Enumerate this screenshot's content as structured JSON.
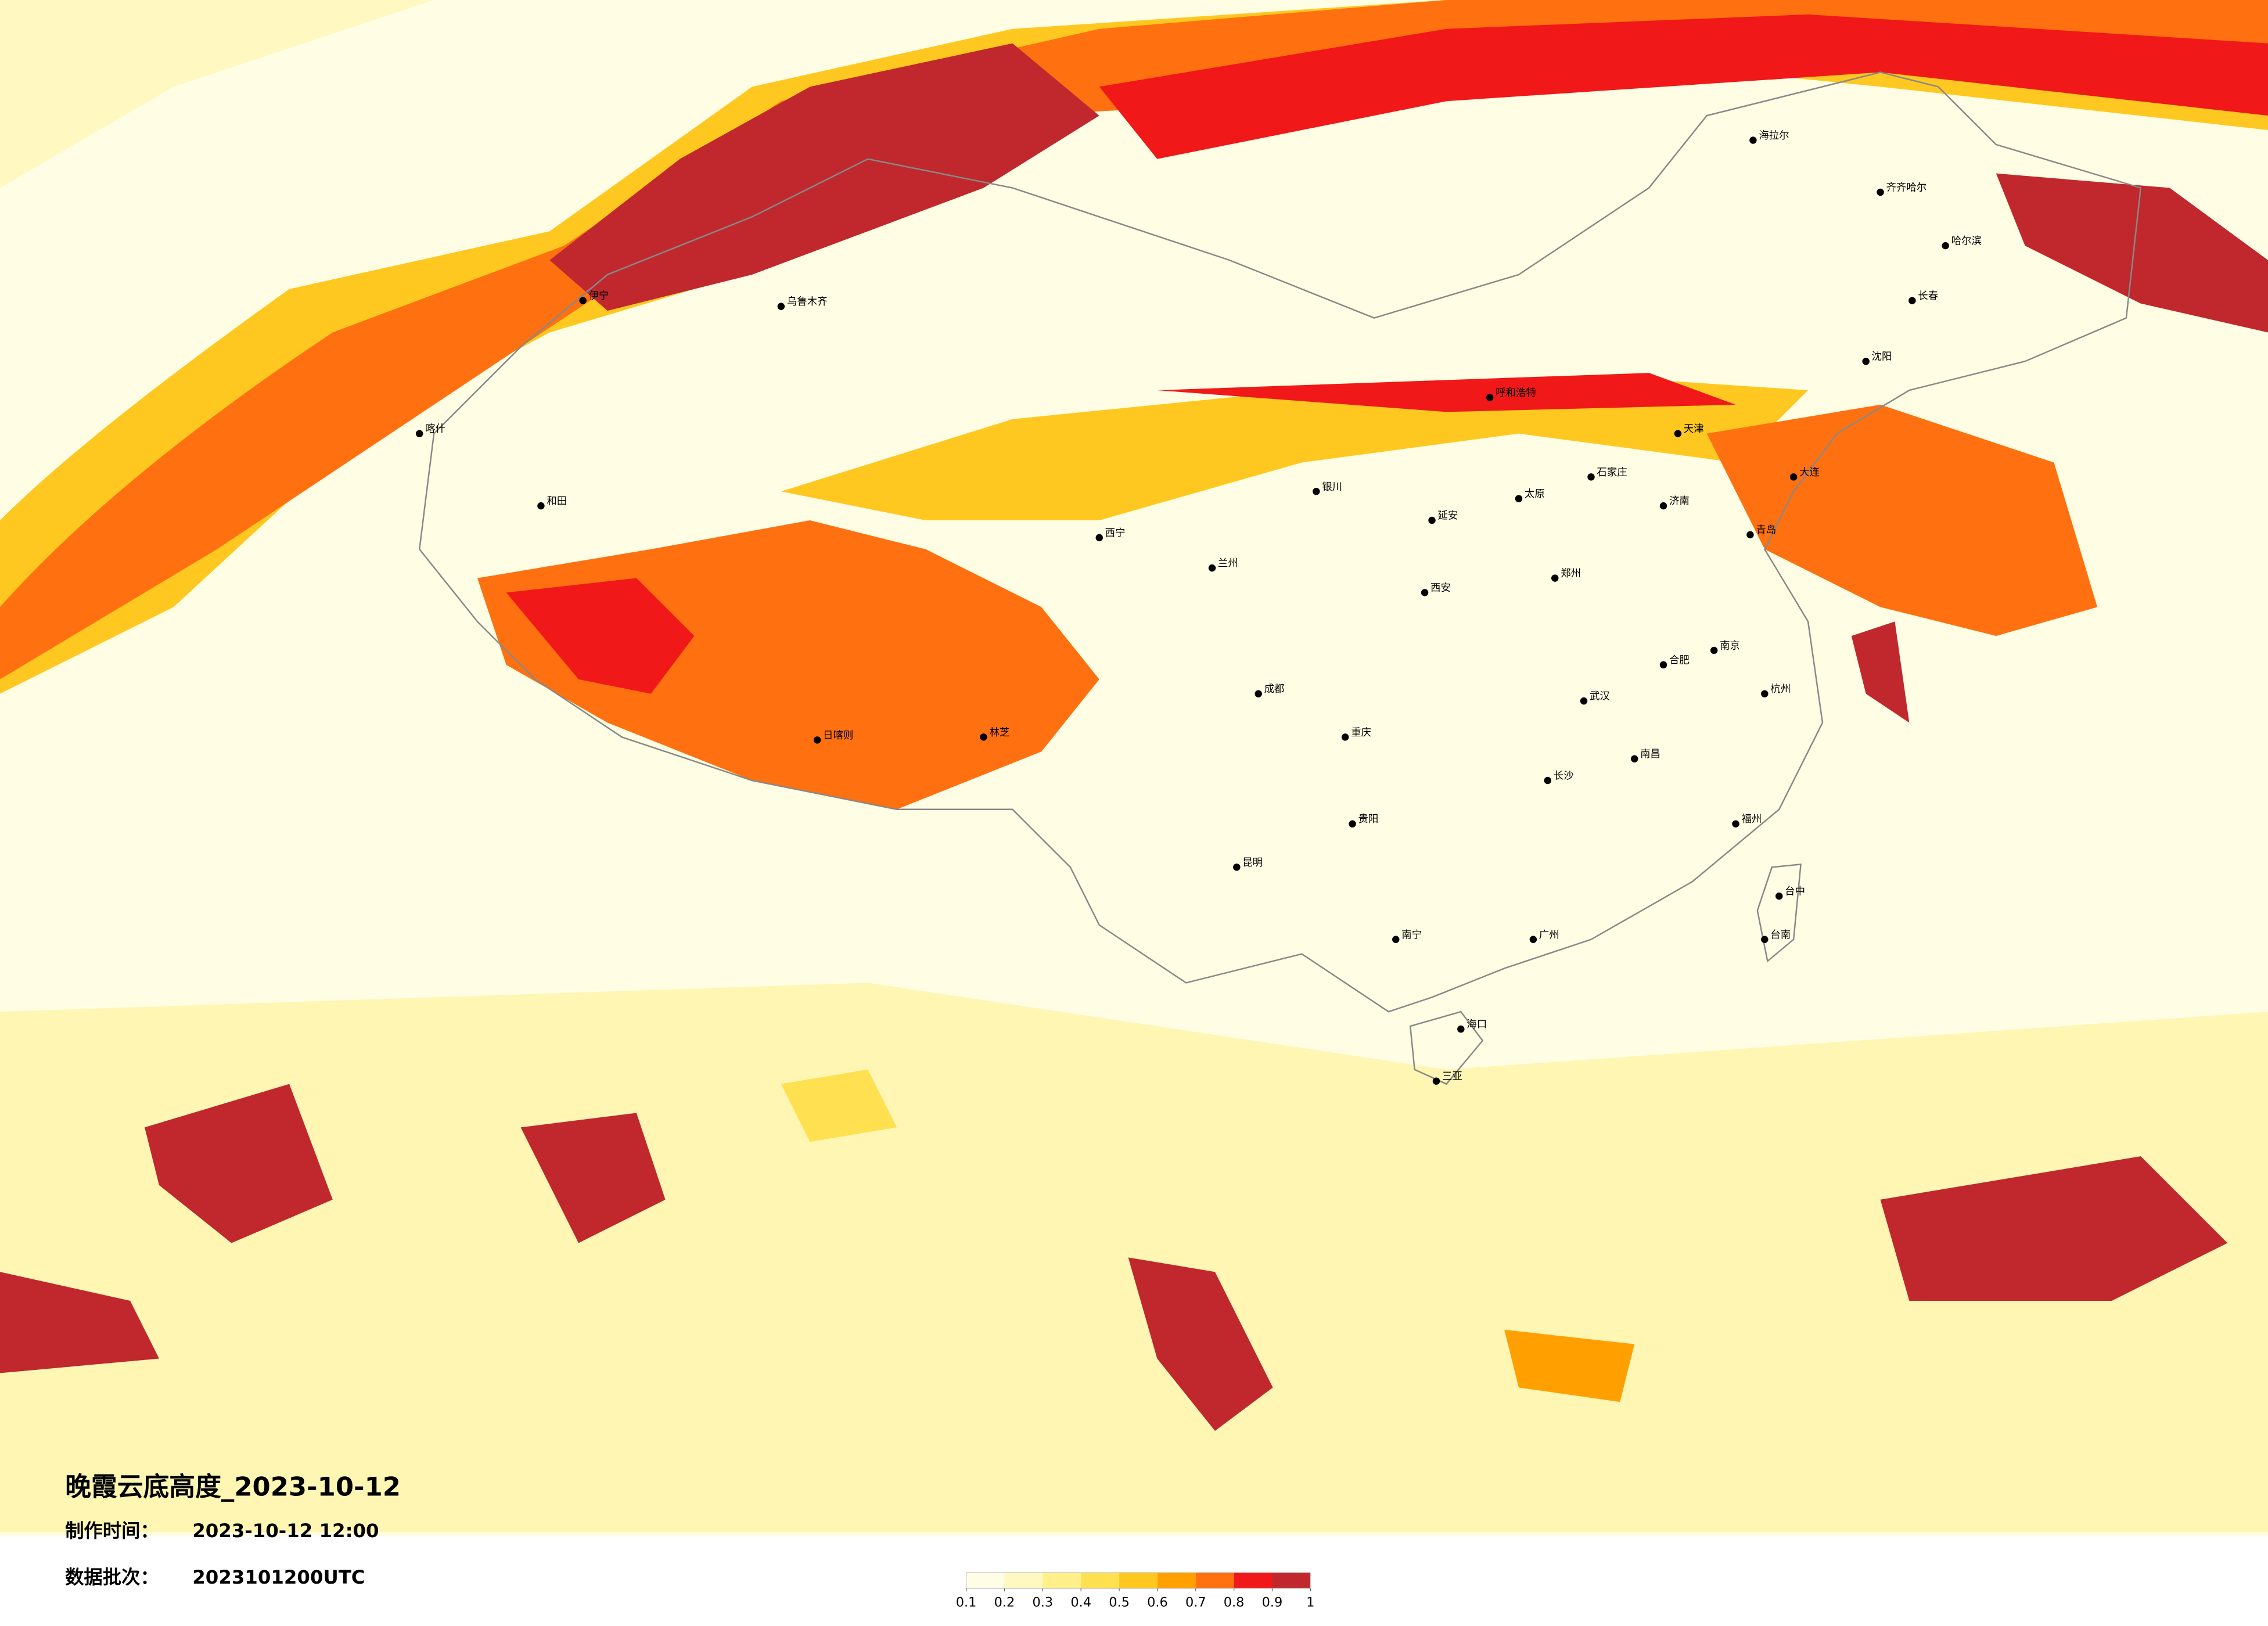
{
  "header": {
    "title": "晚霞云底高度_2023-10-12",
    "made_label": "制作时间：",
    "made_time": "2023-10-12 12:00",
    "batch_label": "数据批次：",
    "batch": "2023101200UTC"
  },
  "colorbar": {
    "ticks": [
      0.1,
      0.2,
      0.3,
      0.4,
      0.5,
      0.6,
      0.7,
      0.8,
      0.9,
      1
    ],
    "colors": [
      "#fffde6",
      "#fff8c0",
      "#fff08a",
      "#ffe050",
      "#ffc820",
      "#ffa000",
      "#ff7010",
      "#f01818",
      "#c0282e"
    ]
  },
  "cities": [
    "海拉尔",
    "齐齐哈尔",
    "哈尔滨",
    "长春",
    "沈阳",
    "乌鲁木齐",
    "伊宁",
    "喀什",
    "和田",
    "日喀则",
    "林芝",
    "西宁",
    "兰州",
    "成都",
    "重庆",
    "昆明",
    "贵阳",
    "南宁",
    "广州",
    "海口",
    "三亚",
    "武汉",
    "长沙",
    "南昌",
    "福州",
    "杭州",
    "南京",
    "合肥",
    "郑州",
    "济南",
    "石家庄",
    "太原",
    "西安",
    "银川",
    "呼和浩特",
    "天津",
    "大连",
    "青岛",
    "延安",
    "台中",
    "台南"
  ]
}
